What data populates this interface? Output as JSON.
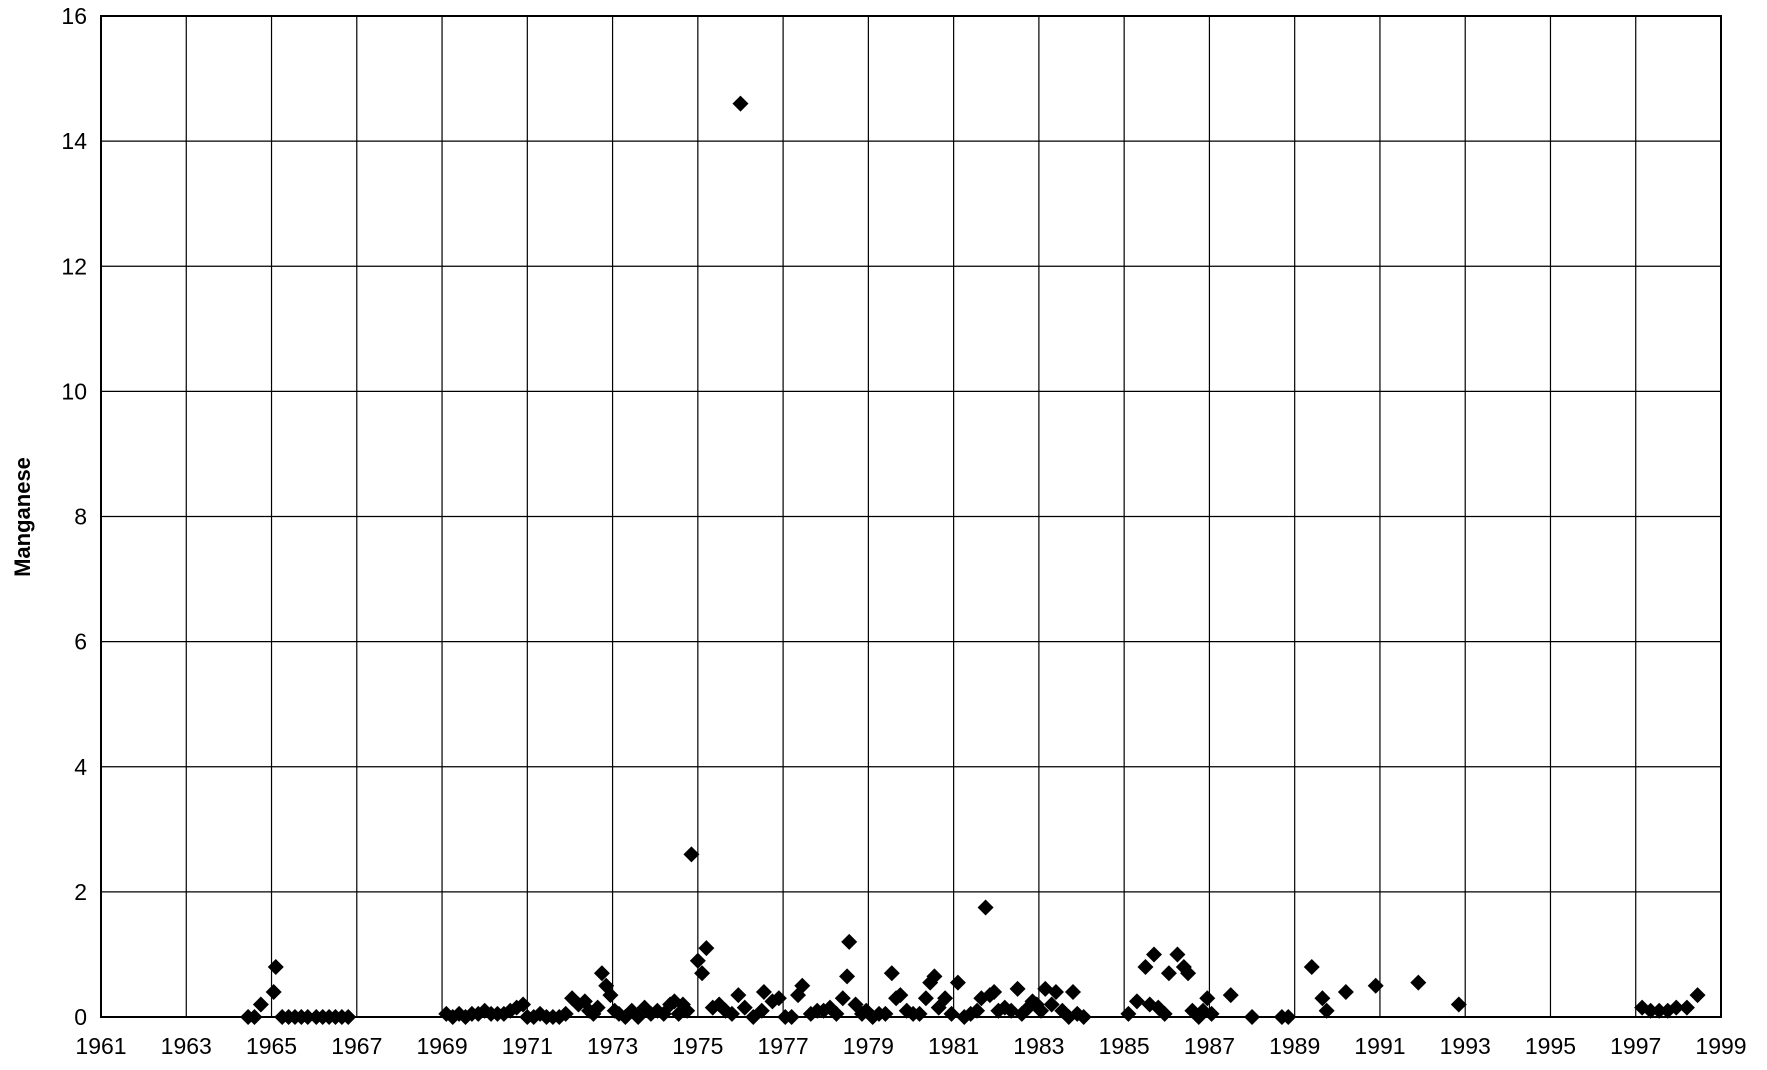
{
  "chart_data": {
    "type": "scatter",
    "title": "",
    "xlabel": "",
    "ylabel": "Manganese",
    "xlim": [
      1961,
      1999
    ],
    "ylim": [
      0,
      16
    ],
    "xticks": [
      "1961",
      "1963",
      "1965",
      "1967",
      "1969",
      "1971",
      "1973",
      "1975",
      "1977",
      "1979",
      "1981",
      "1983",
      "1985",
      "1987",
      "1989",
      "1991",
      "1993",
      "1995",
      "1997",
      "1999"
    ],
    "yticks": [
      "0",
      "2",
      "4",
      "6",
      "8",
      "10",
      "12",
      "14",
      "16"
    ],
    "grid": true,
    "marker": "diamond",
    "marker_color": "#000000",
    "series": [
      {
        "points": [
          [
            1964.45,
            0.0
          ],
          [
            1964.6,
            0.0
          ],
          [
            1964.75,
            0.2
          ],
          [
            1965.1,
            0.8
          ],
          [
            1965.05,
            0.4
          ],
          [
            1965.25,
            0.0
          ],
          [
            1965.4,
            0.0
          ],
          [
            1965.55,
            0.0
          ],
          [
            1965.7,
            0.0
          ],
          [
            1965.85,
            0.0
          ],
          [
            1966.05,
            0.0
          ],
          [
            1966.2,
            0.0
          ],
          [
            1966.35,
            0.0
          ],
          [
            1966.5,
            0.0
          ],
          [
            1966.65,
            0.0
          ],
          [
            1966.8,
            0.0
          ],
          [
            1969.1,
            0.05
          ],
          [
            1969.25,
            0.0
          ],
          [
            1969.4,
            0.05
          ],
          [
            1969.55,
            0.0
          ],
          [
            1969.7,
            0.05
          ],
          [
            1969.85,
            0.05
          ],
          [
            1970.0,
            0.1
          ],
          [
            1970.15,
            0.05
          ],
          [
            1970.3,
            0.05
          ],
          [
            1970.45,
            0.05
          ],
          [
            1970.6,
            0.1
          ],
          [
            1970.75,
            0.15
          ],
          [
            1970.9,
            0.2
          ],
          [
            1971.0,
            0.0
          ],
          [
            1971.15,
            0.0
          ],
          [
            1971.3,
            0.05
          ],
          [
            1971.45,
            0.0
          ],
          [
            1971.6,
            0.0
          ],
          [
            1971.75,
            0.0
          ],
          [
            1971.9,
            0.05
          ],
          [
            1972.05,
            0.3
          ],
          [
            1972.2,
            0.2
          ],
          [
            1972.35,
            0.25
          ],
          [
            1972.45,
            0.1
          ],
          [
            1972.55,
            0.05
          ],
          [
            1972.65,
            0.15
          ],
          [
            1972.75,
            0.7
          ],
          [
            1972.85,
            0.5
          ],
          [
            1972.95,
            0.35
          ],
          [
            1973.05,
            0.1
          ],
          [
            1973.15,
            0.05
          ],
          [
            1973.3,
            0.0
          ],
          [
            1973.45,
            0.1
          ],
          [
            1973.6,
            0.0
          ],
          [
            1973.75,
            0.15
          ],
          [
            1973.9,
            0.05
          ],
          [
            1974.05,
            0.1
          ],
          [
            1974.2,
            0.05
          ],
          [
            1974.35,
            0.2
          ],
          [
            1974.45,
            0.25
          ],
          [
            1974.55,
            0.05
          ],
          [
            1974.65,
            0.2
          ],
          [
            1974.75,
            0.1
          ],
          [
            1974.85,
            2.6
          ],
          [
            1975.0,
            0.9
          ],
          [
            1975.1,
            0.7
          ],
          [
            1975.2,
            1.1
          ],
          [
            1975.35,
            0.15
          ],
          [
            1975.5,
            0.2
          ],
          [
            1975.65,
            0.1
          ],
          [
            1975.8,
            0.05
          ],
          [
            1975.95,
            0.35
          ],
          [
            1976.1,
            0.15
          ],
          [
            1976.0,
            14.6
          ],
          [
            1976.3,
            0.0
          ],
          [
            1976.5,
            0.1
          ],
          [
            1976.55,
            0.4
          ],
          [
            1976.75,
            0.25
          ],
          [
            1976.9,
            0.3
          ],
          [
            1977.05,
            0.0
          ],
          [
            1977.2,
            0.0
          ],
          [
            1977.35,
            0.35
          ],
          [
            1977.45,
            0.5
          ],
          [
            1977.65,
            0.05
          ],
          [
            1977.8,
            0.1
          ],
          [
            1977.95,
            0.1
          ],
          [
            1978.1,
            0.15
          ],
          [
            1978.25,
            0.05
          ],
          [
            1978.4,
            0.3
          ],
          [
            1978.5,
            0.65
          ],
          [
            1978.55,
            1.2
          ],
          [
            1978.7,
            0.2
          ],
          [
            1978.85,
            0.05
          ],
          [
            1978.95,
            0.1
          ],
          [
            1979.1,
            0.0
          ],
          [
            1979.25,
            0.05
          ],
          [
            1979.4,
            0.05
          ],
          [
            1979.55,
            0.7
          ],
          [
            1979.65,
            0.3
          ],
          [
            1979.75,
            0.35
          ],
          [
            1979.9,
            0.1
          ],
          [
            1980.05,
            0.05
          ],
          [
            1980.2,
            0.05
          ],
          [
            1980.35,
            0.3
          ],
          [
            1980.45,
            0.55
          ],
          [
            1980.55,
            0.65
          ],
          [
            1980.65,
            0.15
          ],
          [
            1980.8,
            0.3
          ],
          [
            1980.95,
            0.05
          ],
          [
            1981.1,
            0.55
          ],
          [
            1981.25,
            0.0
          ],
          [
            1981.4,
            0.05
          ],
          [
            1981.55,
            0.1
          ],
          [
            1981.65,
            0.3
          ],
          [
            1981.75,
            1.75
          ],
          [
            1981.85,
            0.35
          ],
          [
            1981.95,
            0.4
          ],
          [
            1982.05,
            0.1
          ],
          [
            1982.2,
            0.15
          ],
          [
            1982.35,
            0.1
          ],
          [
            1982.5,
            0.45
          ],
          [
            1982.6,
            0.05
          ],
          [
            1982.75,
            0.15
          ],
          [
            1982.85,
            0.25
          ],
          [
            1982.95,
            0.2
          ],
          [
            1983.05,
            0.1
          ],
          [
            1983.15,
            0.45
          ],
          [
            1983.3,
            0.2
          ],
          [
            1983.4,
            0.4
          ],
          [
            1983.55,
            0.1
          ],
          [
            1983.7,
            0.0
          ],
          [
            1983.8,
            0.4
          ],
          [
            1983.9,
            0.05
          ],
          [
            1984.05,
            0.0
          ],
          [
            1985.1,
            0.05
          ],
          [
            1985.3,
            0.25
          ],
          [
            1985.5,
            0.8
          ],
          [
            1985.6,
            0.2
          ],
          [
            1985.7,
            1.0
          ],
          [
            1985.8,
            0.15
          ],
          [
            1985.95,
            0.05
          ],
          [
            1986.05,
            0.7
          ],
          [
            1986.25,
            1.0
          ],
          [
            1986.4,
            0.8
          ],
          [
            1986.5,
            0.7
          ],
          [
            1986.6,
            0.1
          ],
          [
            1986.75,
            0.0
          ],
          [
            1986.85,
            0.1
          ],
          [
            1986.95,
            0.3
          ],
          [
            1987.05,
            0.05
          ],
          [
            1987.5,
            0.35
          ],
          [
            1988.0,
            0.0
          ],
          [
            1988.7,
            0.0
          ],
          [
            1988.85,
            0.0
          ],
          [
            1989.4,
            0.8
          ],
          [
            1989.65,
            0.3
          ],
          [
            1989.75,
            0.1
          ],
          [
            1990.2,
            0.4
          ],
          [
            1990.9,
            0.5
          ],
          [
            1991.9,
            0.55
          ],
          [
            1992.85,
            0.2
          ],
          [
            1997.15,
            0.15
          ],
          [
            1997.35,
            0.1
          ],
          [
            1997.55,
            0.1
          ],
          [
            1997.75,
            0.1
          ],
          [
            1997.95,
            0.15
          ],
          [
            1998.2,
            0.15
          ],
          [
            1998.45,
            0.35
          ]
        ]
      }
    ]
  }
}
